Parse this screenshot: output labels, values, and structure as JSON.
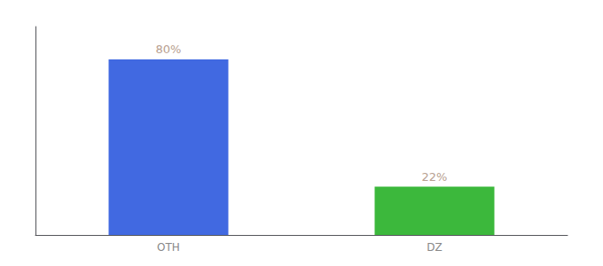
{
  "chart_data": {
    "type": "bar",
    "categories": [
      "OTH",
      "DZ"
    ],
    "values": [
      80,
      22
    ],
    "colors": [
      "#4169e1",
      "#3cb83c"
    ],
    "data_labels": true,
    "value_labels": [
      "80%",
      "22%"
    ],
    "ylim": [
      0,
      95
    ],
    "grid": false,
    "tick_labels": "x"
  }
}
